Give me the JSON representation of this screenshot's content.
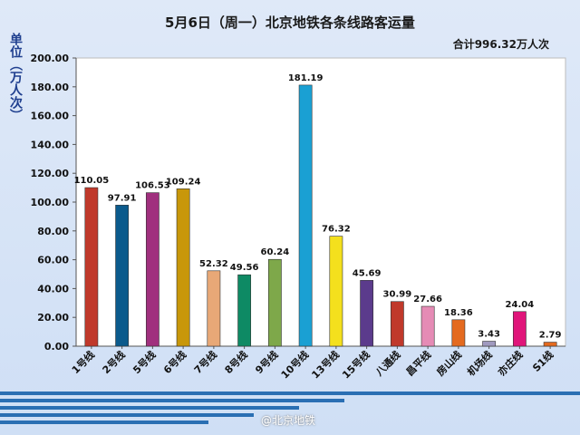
{
  "colors": {
    "axis": "#555555",
    "plot_bg": "#ffffff",
    "stripe": "#2a6fb3",
    "watermark": "#d8e6f2"
  },
  "watermark": {
    "text": "@北京地铁"
  },
  "chart_data": {
    "type": "bar",
    "title": "5月6日（周一）北京地铁各条线路客运量",
    "annotation": "合计996.32万人次",
    "ylabel": "单位（万人次）",
    "xlabel": "",
    "ylim": [
      0,
      200
    ],
    "yticks": [
      "0.00",
      "20.00",
      "40.00",
      "60.00",
      "80.00",
      "100.00",
      "120.00",
      "140.00",
      "160.00",
      "180.00",
      "200.00"
    ],
    "grid": false,
    "categories": [
      "1号线",
      "2号线",
      "5号线",
      "6号线",
      "7号线",
      "8号线",
      "9号线",
      "10号线",
      "13号线",
      "15号线",
      "八通线",
      "昌平线",
      "房山线",
      "机场线",
      "亦庄线",
      "S1线"
    ],
    "values": [
      110.05,
      97.91,
      106.53,
      109.24,
      52.32,
      49.56,
      60.24,
      181.19,
      76.32,
      45.69,
      30.99,
      27.66,
      18.36,
      3.43,
      24.04,
      2.79
    ],
    "value_labels": [
      "110.05",
      "97.91",
      "106.53",
      "109.24",
      "52.32",
      "49.56",
      "60.24",
      "181.19",
      "76.32",
      "45.69",
      "30.99",
      "27.66",
      "18.36",
      "3.43",
      "24.04",
      "2.79"
    ],
    "bar_colors": [
      "#c0392b",
      "#0b5a8c",
      "#a0307e",
      "#c8970a",
      "#e8a877",
      "#0e8a64",
      "#7ea84a",
      "#1aa0d3",
      "#f4e01d",
      "#5b3b8c",
      "#c0392b",
      "#e58bb5",
      "#e46a1f",
      "#a09abf",
      "#e0157a",
      "#e46a1f"
    ]
  }
}
